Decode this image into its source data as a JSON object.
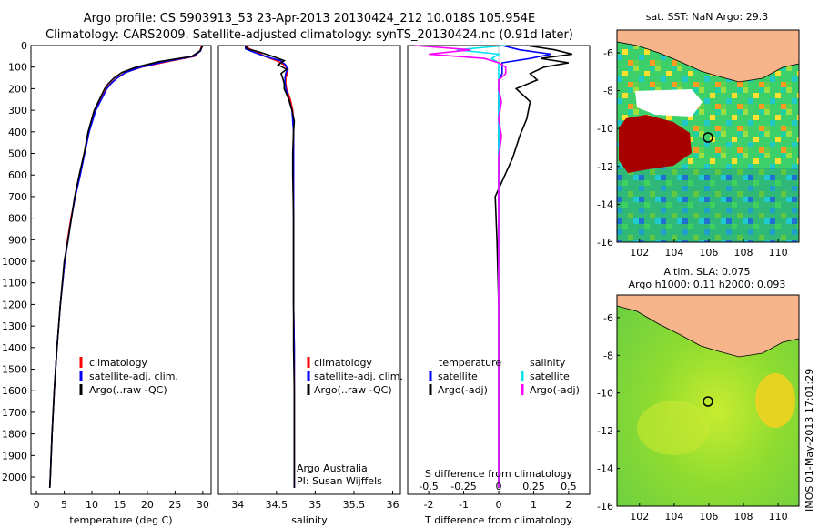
{
  "header": {
    "title_line1": "Argo profile: CS 5903913_53 23-Apr-2013 20130424_212 10.018S 105.954E",
    "title_line2": "Climatology: CARS2009. Satellite-adjusted climatology: synTS_20130424.nc (0.91d later)"
  },
  "colors": {
    "climatology": "#ff0000",
    "satellite": "#0000ff",
    "argo": "#000000",
    "satellite_salinity": "#00e5ee",
    "argo_adj_salinity": "#ff00ff",
    "land": "#f5b48a"
  },
  "chart_data": [
    {
      "type": "line",
      "xlabel": "temperature (deg C)",
      "ylim": [
        2080,
        0
      ],
      "xlim": [
        -1,
        31.5
      ],
      "xticks": [
        "0",
        "5",
        "10",
        "15",
        "20",
        "25",
        "30"
      ],
      "yticks": [
        "0",
        "100",
        "200",
        "300",
        "400",
        "500",
        "600",
        "700",
        "800",
        "900",
        "1000",
        "1100",
        "1200",
        "1300",
        "1400",
        "1500",
        "1600",
        "1700",
        "1800",
        "1900",
        "2000"
      ],
      "depth": [
        0,
        25,
        50,
        75,
        100,
        125,
        150,
        175,
        200,
        300,
        400,
        500,
        600,
        700,
        800,
        900,
        1000,
        1200,
        1400,
        1600,
        1800,
        2000,
        2050
      ],
      "series": [
        {
          "name": "climatology",
          "values": [
            29.8,
            29.5,
            28.5,
            23.5,
            19,
            16,
            14.5,
            13.4,
            12.6,
            10.6,
            9.4,
            8.6,
            7.8,
            7.0,
            6.2,
            5.6,
            5.1,
            4.3,
            3.7,
            3.2,
            2.8,
            2.5,
            2.4
          ]
        },
        {
          "name": "satellite-adj. clim.",
          "values": [
            29.9,
            29.6,
            28.3,
            23,
            18.8,
            16.1,
            14.6,
            13.5,
            12.7,
            10.7,
            9.5,
            8.7,
            7.9,
            7.0,
            6.3,
            5.7,
            5.1,
            4.3,
            3.7,
            3.2,
            2.8,
            2.5,
            2.4
          ]
        },
        {
          "name": "Argo(..raw -QC)",
          "values": [
            30,
            29.5,
            28,
            22,
            18,
            15.4,
            14.0,
            13.0,
            12.3,
            10.4,
            9.3,
            8.6,
            7.7,
            6.9,
            6.3,
            5.7,
            5.0,
            4.3,
            3.7,
            3.2,
            2.8,
            2.5,
            2.4
          ]
        }
      ],
      "legend": [
        "climatology",
        "satellite-adj. clim.",
        "Argo(..raw -QC)"
      ]
    },
    {
      "type": "line",
      "xlabel": "salinity",
      "xlim": [
        33.75,
        36.1
      ],
      "xticks": [
        "34",
        "34.5",
        "35",
        "35.5",
        "36"
      ],
      "depth": [
        0,
        15,
        30,
        50,
        70,
        90,
        110,
        130,
        150,
        175,
        200,
        250,
        300,
        350,
        400,
        500,
        600,
        800,
        1000,
        1200,
        1400,
        1600,
        1800,
        2000,
        2050
      ],
      "series": [
        {
          "name": "climatology",
          "values": [
            34.1,
            34.15,
            34.25,
            34.35,
            34.5,
            34.6,
            34.65,
            34.64,
            34.62,
            34.62,
            34.63,
            34.68,
            34.71,
            34.72,
            34.72,
            34.72,
            34.72,
            34.72,
            34.72,
            34.72,
            34.73,
            34.73,
            34.73,
            34.73,
            34.73
          ]
        },
        {
          "name": "satellite-adj. clim.",
          "values": [
            34.1,
            34.1,
            34.2,
            34.35,
            34.55,
            34.62,
            34.64,
            34.62,
            34.61,
            34.61,
            34.62,
            34.66,
            34.7,
            34.71,
            34.72,
            34.72,
            34.72,
            34.72,
            34.72,
            34.72,
            34.73,
            34.73,
            34.73,
            34.73,
            34.73
          ]
        },
        {
          "name": "Argo(..raw -QC)",
          "values": [
            34.1,
            34.12,
            34.28,
            34.45,
            34.6,
            34.52,
            34.63,
            34.56,
            34.58,
            34.6,
            34.6,
            34.66,
            34.7,
            34.73,
            34.72,
            34.71,
            34.71,
            34.72,
            34.72,
            34.72,
            34.72,
            34.73,
            34.73,
            34.73,
            34.73
          ]
        }
      ],
      "legend": [
        "climatology",
        "satellite-adj. clim.",
        "Argo(..raw -QC)"
      ],
      "annotation_1": "Argo Australia",
      "annotation_2": "PI: Susan Wijffels"
    },
    {
      "type": "line",
      "xlabel_bottom": "T difference from climatology",
      "xlabel_top": "S difference from climatology",
      "xlim_T": [
        -2.6,
        2.6
      ],
      "xticks_T": [
        "-2",
        "-1",
        "0",
        "1",
        "2"
      ],
      "xticks_S": [
        "-0.5",
        "-0.25",
        "0",
        "0.25",
        "0.5"
      ],
      "depth": [
        0,
        20,
        40,
        60,
        80,
        100,
        130,
        160,
        200,
        260,
        340,
        420,
        520,
        700,
        900,
        1200,
        1600,
        2050
      ],
      "series": [
        {
          "name": "satellite",
          "values": [
            0.1,
            0.6,
            1.5,
            0.9,
            0.1,
            0.1,
            0.1,
            0.0,
            0.0,
            0.0,
            0.0,
            0.0,
            0.0,
            0.0,
            0.0,
            0.0,
            0.0,
            0.0
          ]
        },
        {
          "name": "Argo(-adj)",
          "values": [
            0.8,
            1.6,
            2.1,
            1.2,
            2.0,
            1.3,
            0.9,
            1.1,
            0.5,
            0.9,
            0.8,
            0.6,
            0.4,
            -0.1,
            -0.05,
            0.0,
            0.0,
            0.0
          ]
        }
      ],
      "salinity_series": [
        {
          "name": "satellite",
          "values": [
            0.05,
            -0.3,
            0.0,
            -0.05,
            0.0,
            0.0,
            0.0,
            0.0,
            0.0,
            0.0,
            0.0,
            0.0,
            0.0,
            0.0,
            0.0,
            0.0,
            0.0,
            0.0
          ]
        },
        {
          "name": "Argo(-adj)",
          "values": [
            -0.6,
            -0.2,
            -0.5,
            -0.1,
            0.0,
            0.05,
            0.05,
            0.0,
            0.0,
            0.02,
            0.0,
            0.02,
            0.0,
            0.0,
            0.0,
            0.0,
            0.0,
            0.0
          ]
        }
      ],
      "legend_left_title": "temperature",
      "legend_right_title": "salinity",
      "legend_left": [
        "satellite",
        "Argo(-adj)"
      ],
      "legend_right": [
        "satellite",
        "Argo(-adj)"
      ]
    },
    {
      "type": "heatmap",
      "title": "sat. SST: NaN Argo: 29.3",
      "xticks": [
        "102",
        "104",
        "106",
        "108",
        "110"
      ],
      "yticks": [
        "-6",
        "-8",
        "-10",
        "-12",
        "-14",
        "-16"
      ]
    },
    {
      "type": "heatmap",
      "title_line1": "Altim. SLA: 0.075",
      "title_line2": "Argo h1000: 0.11 h2000: 0.093",
      "xticks": [
        "102",
        "104",
        "106",
        "108",
        "110"
      ],
      "yticks": [
        "-6",
        "-8",
        "-10",
        "-12",
        "-14",
        "-16"
      ]
    }
  ],
  "footer_stamp": "IMOS 01-May-2013 17:01:29"
}
